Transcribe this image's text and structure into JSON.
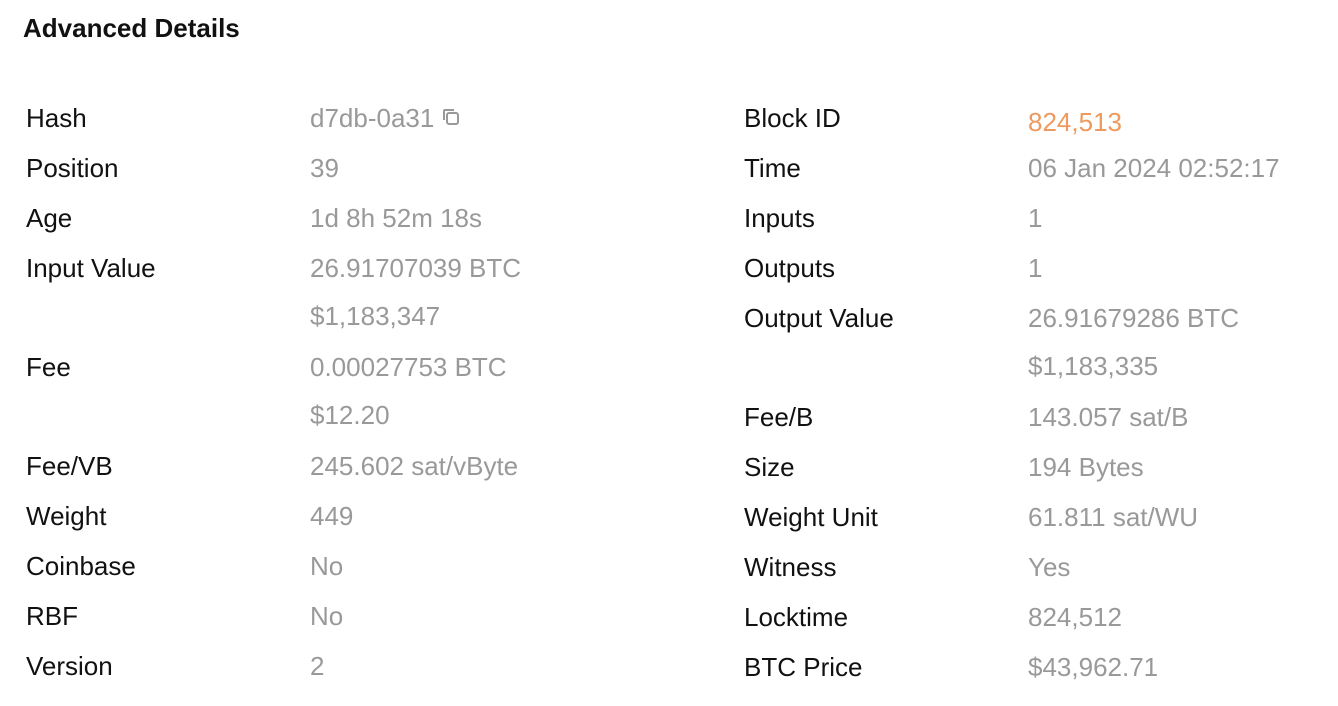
{
  "section": {
    "title": "Advanced Details"
  },
  "left": {
    "hash": {
      "label": "Hash",
      "value": "d7db-0a31",
      "icon": "copy-icon"
    },
    "position": {
      "label": "Position",
      "value": "39"
    },
    "age": {
      "label": "Age",
      "value": "1d 8h 52m 18s"
    },
    "input_value": {
      "label": "Input Value",
      "btc": "26.91707039 BTC",
      "usd": "$1,183,347"
    },
    "fee": {
      "label": "Fee",
      "btc": "0.00027753 BTC",
      "usd": "$12.20"
    },
    "fee_vb": {
      "label": "Fee/VB",
      "value": "245.602 sat/vByte"
    },
    "weight": {
      "label": "Weight",
      "value": "449"
    },
    "coinbase": {
      "label": "Coinbase",
      "value": "No"
    },
    "rbf": {
      "label": "RBF",
      "value": "No"
    },
    "version": {
      "label": "Version",
      "value": "2"
    }
  },
  "right": {
    "block_id": {
      "label": "Block ID",
      "value": "824,513",
      "color": "#ec9a5d"
    },
    "time": {
      "label": "Time",
      "value": "06 Jan 2024 02:52:17"
    },
    "inputs": {
      "label": "Inputs",
      "value": "1"
    },
    "outputs": {
      "label": "Outputs",
      "value": "1"
    },
    "output_value": {
      "label": "Output Value",
      "btc": "26.91679286 BTC",
      "usd": "$1,183,335"
    },
    "fee_b": {
      "label": "Fee/B",
      "value": "143.057 sat/B"
    },
    "size": {
      "label": "Size",
      "value": "194 Bytes"
    },
    "weight_unit": {
      "label": "Weight Unit",
      "value": "61.811 sat/WU"
    },
    "witness": {
      "label": "Witness",
      "value": "Yes"
    },
    "locktime": {
      "label": "Locktime",
      "value": "824,512"
    },
    "btc_price": {
      "label": "BTC Price",
      "value": "$43,962.71"
    }
  }
}
